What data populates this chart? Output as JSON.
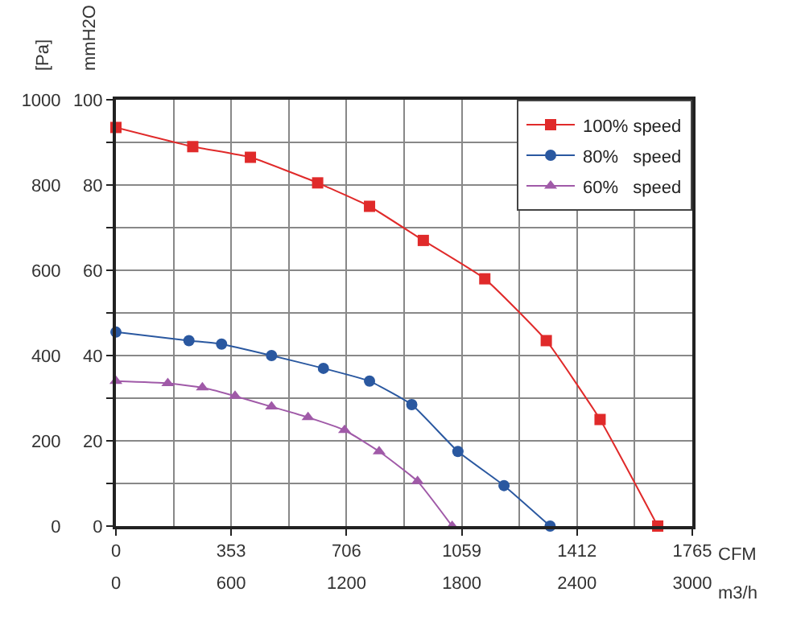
{
  "chart_data": {
    "type": "line",
    "xlabel": "m3/h",
    "x2label": "CFM",
    "ylabel": "[Pa]",
    "y2label": "mmH2O",
    "xlim": [
      0,
      3000
    ],
    "xticks": [
      0,
      600,
      1200,
      1800,
      2400,
      3000
    ],
    "x2lim": [
      0,
      1765
    ],
    "x2ticks": [
      0,
      353,
      706,
      1059,
      1412,
      1765
    ],
    "ylim": [
      0,
      1000
    ],
    "yticks": [
      0,
      200,
      400,
      600,
      800,
      1000
    ],
    "y2lim": [
      0,
      100
    ],
    "y2ticks": [
      0,
      20,
      40,
      60,
      80,
      100
    ],
    "grid": true,
    "legend": "top right",
    "series": [
      {
        "name": "100% speed",
        "color": "#e02a2a",
        "marker": "square",
        "x": [
          0,
          400,
          700,
          1050,
          1320,
          1600,
          1920,
          2240,
          2520,
          2820
        ],
        "values": [
          935,
          890,
          865,
          805,
          750,
          670,
          580,
          435,
          250,
          0
        ]
      },
      {
        "name": "80%   speed",
        "color": "#2a58a0",
        "marker": "circle",
        "x": [
          0,
          380,
          550,
          810,
          1080,
          1320,
          1540,
          1780,
          2020,
          2260
        ],
        "values": [
          455,
          435,
          427,
          400,
          370,
          340,
          285,
          175,
          95,
          0
        ]
      },
      {
        "name": "60%   speed",
        "color": "#a05aa8",
        "marker": "triangle",
        "x": [
          0,
          270,
          450,
          620,
          810,
          1000,
          1190,
          1370,
          1570,
          1750
        ],
        "values": [
          340,
          335,
          325,
          305,
          280,
          255,
          225,
          175,
          105,
          0
        ]
      }
    ]
  }
}
